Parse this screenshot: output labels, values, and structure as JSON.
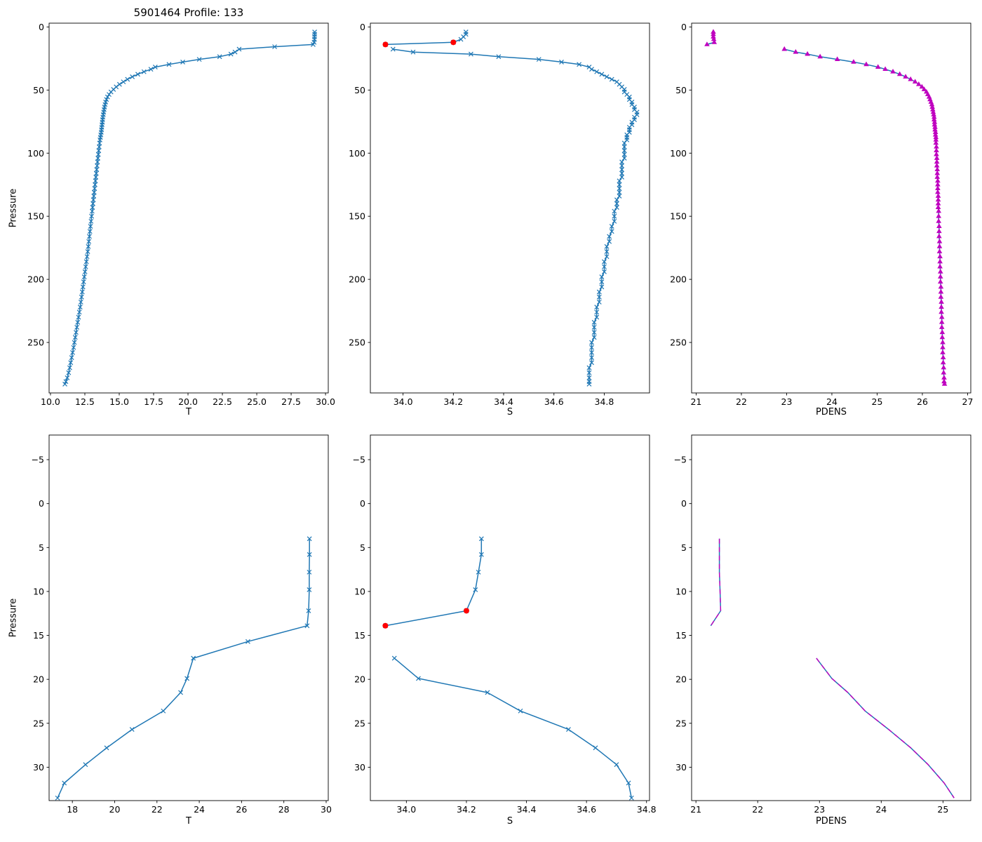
{
  "title": "5901464 Profile: 133",
  "chart_data": {
    "type": "line",
    "subtitle": "Argo float temperature, salinity and potential density profiles vs pressure (full depth top row, upper 33 dbar zoom bottom row)",
    "colors": {
      "line": "#1f77b4",
      "flag": "#ff0000",
      "overlay": "#bf00bf",
      "axes": "#000000"
    },
    "profile": {
      "p": [
        4.0,
        5.8,
        7.8,
        9.8,
        12.2,
        13.9,
        15.7,
        17.6,
        19.9,
        21.5,
        23.6,
        25.7,
        27.8,
        29.7,
        31.8,
        33.5,
        35.5,
        37.5,
        39.5,
        41.5,
        43.5,
        45.5,
        47.5,
        49.5,
        51.5,
        53.5,
        55.5,
        57.5,
        59.5,
        61.5,
        63.5,
        65.5,
        67.5,
        69.5,
        71.5,
        73.5,
        75.5,
        77.5,
        79.5,
        81.5,
        83.5,
        85.5,
        87.5,
        89.5,
        92,
        95,
        98,
        101,
        104,
        107,
        110,
        113,
        116,
        119,
        122,
        125,
        128,
        131,
        134,
        137,
        140,
        143,
        146,
        150,
        154,
        158,
        162,
        166,
        170,
        174,
        178,
        182,
        186,
        190,
        194,
        198,
        202,
        206,
        210,
        214,
        218,
        222,
        226,
        230,
        234,
        238,
        242,
        246,
        250,
        254,
        258,
        262,
        266,
        270,
        274,
        278,
        281,
        283
      ],
      "t": [
        29.21,
        29.21,
        29.2,
        29.2,
        29.17,
        29.1,
        26.3,
        23.72,
        23.42,
        23.12,
        22.3,
        20.82,
        19.62,
        18.62,
        17.62,
        17.3,
        16.8,
        16.35,
        15.95,
        15.6,
        15.3,
        15.02,
        14.78,
        14.58,
        14.4,
        14.26,
        14.15,
        14.07,
        14.01,
        13.97,
        13.93,
        13.9,
        13.87,
        13.84,
        13.81,
        13.79,
        13.77,
        13.75,
        13.73,
        13.71,
        13.69,
        13.66,
        13.63,
        13.6,
        13.57,
        13.54,
        13.51,
        13.48,
        13.45,
        13.42,
        13.39,
        13.36,
        13.33,
        13.3,
        13.27,
        13.24,
        13.21,
        13.18,
        13.15,
        13.12,
        13.09,
        13.06,
        13.03,
        12.99,
        12.95,
        12.91,
        12.87,
        12.83,
        12.79,
        12.75,
        12.71,
        12.66,
        12.61,
        12.56,
        12.51,
        12.46,
        12.41,
        12.36,
        12.31,
        12.26,
        12.21,
        12.16,
        12.1,
        12.04,
        11.98,
        11.92,
        11.86,
        11.8,
        11.74,
        11.68,
        11.61,
        11.54,
        11.47,
        11.4,
        11.32,
        11.22,
        11.12,
        11.05
      ],
      "s": [
        34.25,
        34.25,
        34.24,
        34.23,
        34.2,
        33.93,
        null,
        33.96,
        34.04,
        34.27,
        34.38,
        34.54,
        34.63,
        34.7,
        34.74,
        34.75,
        34.77,
        34.79,
        34.81,
        34.83,
        34.85,
        34.86,
        34.87,
        34.88,
        34.88,
        34.89,
        34.9,
        34.9,
        34.91,
        34.91,
        34.92,
        34.92,
        34.93,
        34.93,
        34.92,
        34.92,
        34.91,
        34.91,
        34.9,
        34.9,
        34.9,
        34.89,
        34.89,
        34.89,
        34.88,
        34.88,
        34.88,
        34.88,
        34.88,
        34.87,
        34.87,
        34.87,
        34.87,
        34.87,
        34.86,
        34.86,
        34.86,
        34.86,
        34.86,
        34.85,
        34.85,
        34.85,
        34.84,
        34.84,
        34.84,
        34.83,
        34.83,
        34.82,
        34.82,
        34.81,
        34.81,
        34.81,
        34.8,
        34.8,
        34.8,
        34.79,
        34.79,
        34.79,
        34.78,
        34.78,
        34.78,
        34.77,
        34.77,
        34.77,
        34.76,
        34.76,
        34.76,
        34.76,
        34.75,
        34.75,
        34.75,
        34.75,
        34.75,
        34.74,
        34.74,
        34.74,
        34.74,
        34.74
      ],
      "pdens": [
        21.38,
        21.38,
        21.38,
        21.39,
        21.4,
        21.24,
        null,
        22.95,
        23.2,
        23.46,
        23.74,
        24.12,
        24.48,
        24.76,
        25.02,
        25.18,
        25.35,
        25.5,
        25.63,
        25.74,
        25.84,
        25.92,
        25.99,
        26.04,
        26.09,
        26.12,
        26.15,
        26.17,
        26.19,
        26.21,
        26.22,
        26.23,
        26.24,
        26.25,
        26.26,
        26.26,
        26.27,
        26.27,
        26.28,
        26.28,
        26.29,
        26.29,
        26.3,
        26.3,
        26.3,
        26.31,
        26.31,
        26.31,
        26.32,
        26.32,
        26.32,
        26.33,
        26.33,
        26.33,
        26.34,
        26.34,
        26.34,
        26.34,
        26.35,
        26.35,
        26.35,
        26.35,
        26.36,
        26.36,
        26.36,
        26.37,
        26.37,
        26.37,
        26.38,
        26.38,
        26.38,
        26.39,
        26.39,
        26.39,
        26.4,
        26.4,
        26.4,
        26.41,
        26.41,
        26.41,
        26.42,
        26.42,
        26.42,
        26.43,
        26.43,
        26.43,
        26.44,
        26.44,
        26.45,
        26.45,
        26.45,
        26.46,
        26.46,
        26.47,
        26.47,
        26.48,
        26.48,
        26.49
      ],
      "flagged_s": [
        {
          "p": 12.2,
          "s": 34.2
        },
        {
          "p": 13.9,
          "s": 33.93
        }
      ]
    },
    "charts": [
      {
        "name": "t-vs-pressure-full",
        "x_field": "t",
        "marker": "x",
        "xlabel": "T",
        "ylabel": "Pressure",
        "xlim": [
          9.9,
          30.2
        ],
        "ylim": [
          -3,
          290
        ],
        "xtick_vals": [
          10,
          12.5,
          15,
          17.5,
          20,
          22.5,
          25,
          27.5,
          30
        ],
        "xtick_labels": [
          "10.0",
          "12.5",
          "15.0",
          "17.5",
          "20.0",
          "22.5",
          "25.0",
          "27.5",
          "30.0"
        ],
        "ytick_vals": [
          0,
          50,
          100,
          150,
          200,
          250
        ],
        "ytick_labels": [
          "0",
          "50",
          "100",
          "150",
          "200",
          "250"
        ]
      },
      {
        "name": "s-vs-pressure-full",
        "x_field": "s",
        "marker": "x",
        "flagged": true,
        "xlabel": "S",
        "xlim": [
          33.87,
          34.98
        ],
        "ylim": [
          -3,
          290
        ],
        "xtick_vals": [
          34.0,
          34.2,
          34.4,
          34.6,
          34.8
        ],
        "xtick_labels": [
          "34.0",
          "34.2",
          "34.4",
          "34.6",
          "34.8"
        ],
        "ytick_vals": [
          0,
          50,
          100,
          150,
          200,
          250
        ],
        "ytick_labels": [
          "0",
          "50",
          "100",
          "150",
          "200",
          "250"
        ]
      },
      {
        "name": "pdens-vs-pressure-full",
        "x_field": "pdens",
        "marker": "triangle",
        "xlabel": "PDENS",
        "xlim": [
          20.9,
          27.07
        ],
        "ylim": [
          -3,
          290
        ],
        "xtick_vals": [
          21,
          22,
          23,
          24,
          25,
          26,
          27
        ],
        "xtick_labels": [
          "21",
          "22",
          "23",
          "24",
          "25",
          "26",
          "27"
        ],
        "ytick_vals": [
          0,
          50,
          100,
          150,
          200,
          250
        ],
        "ytick_labels": [
          "0",
          "50",
          "100",
          "150",
          "200",
          "250"
        ]
      },
      {
        "name": "t-vs-pressure-zoom",
        "x_field": "t",
        "marker": "x",
        "max_p": 34,
        "xlabel": "T",
        "ylabel": "Pressure",
        "xlim": [
          16.9,
          30.1
        ],
        "ylim": [
          -7.8,
          33.8
        ],
        "xtick_vals": [
          18,
          20,
          22,
          24,
          26,
          28,
          30
        ],
        "xtick_labels": [
          "18",
          "20",
          "22",
          "24",
          "26",
          "28",
          "30"
        ],
        "ytick_vals": [
          -5,
          0,
          5,
          10,
          15,
          20,
          25,
          30
        ],
        "ytick_labels": [
          "−5",
          "0",
          "5",
          "10",
          "15",
          "20",
          "25",
          "30"
        ]
      },
      {
        "name": "s-vs-pressure-zoom",
        "x_field": "s",
        "marker": "x",
        "flagged": true,
        "max_p": 34,
        "xlabel": "S",
        "xlim": [
          33.88,
          34.81
        ],
        "ylim": [
          -7.8,
          33.8
        ],
        "xtick_vals": [
          34.0,
          34.2,
          34.4,
          34.6,
          34.8
        ],
        "xtick_labels": [
          "34.0",
          "34.2",
          "34.4",
          "34.6",
          "34.8"
        ],
        "ytick_vals": [
          -5,
          0,
          5,
          10,
          15,
          20,
          25,
          30
        ],
        "ytick_labels": [
          "−5",
          "0",
          "5",
          "10",
          "15",
          "20",
          "25",
          "30"
        ]
      },
      {
        "name": "pdens-vs-pressure-zoom",
        "x_field": "pdens",
        "marker": "none",
        "overlay": true,
        "max_p": 34,
        "xlabel": "PDENS",
        "xlim": [
          20.93,
          25.45
        ],
        "ylim": [
          -7.8,
          33.8
        ],
        "xtick_vals": [
          21,
          22,
          23,
          24,
          25
        ],
        "xtick_labels": [
          "21",
          "22",
          "23",
          "24",
          "25"
        ],
        "ytick_vals": [
          -5,
          0,
          5,
          10,
          15,
          20,
          25,
          30
        ],
        "ytick_labels": [
          "−5",
          "0",
          "5",
          "10",
          "15",
          "20",
          "25",
          "30"
        ]
      }
    ]
  }
}
